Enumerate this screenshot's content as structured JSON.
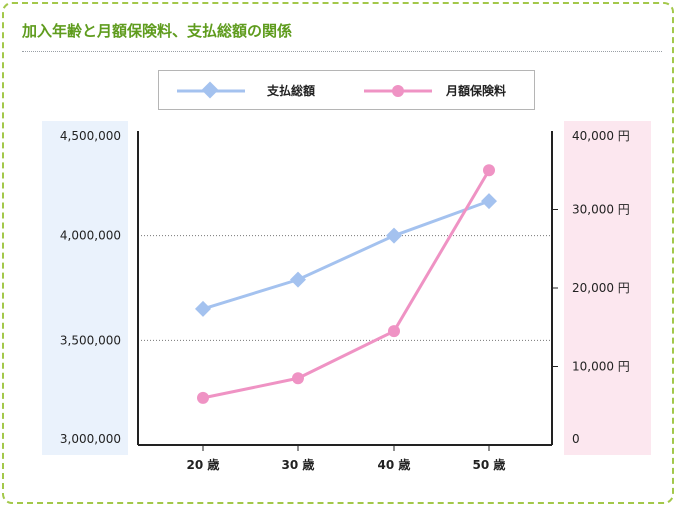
{
  "title": "加入年齢と月額保険料、支払総額の関係",
  "colors": {
    "frame": "#a3c84a",
    "title": "#5f9c1e",
    "series_total": "#a4c2ef",
    "series_premium": "#ef93c4",
    "panel_left": "#eaf2fc",
    "panel_right": "#fce7ef"
  },
  "chart_data": {
    "type": "line",
    "categories": [
      "20 歳",
      "30 歳",
      "40 歳",
      "50 歳"
    ],
    "series": [
      {
        "name": "支払総額",
        "axis": "left",
        "marker": "diamond",
        "color": "#a4c2ef",
        "values": [
          3650000,
          3790000,
          4000000,
          4165000
        ]
      },
      {
        "name": "月額保険料",
        "axis": "right",
        "marker": "circle",
        "color": "#ef93c4",
        "values": [
          6000,
          8500,
          14500,
          35000
        ]
      }
    ],
    "y_left": {
      "lim": [
        3000000,
        4500000
      ],
      "ticks": [
        3000000,
        3500000,
        4000000,
        4500000
      ],
      "tick_labels": [
        "3,000,000",
        "3,500,000",
        "4,000,000",
        "4,500,000"
      ]
    },
    "y_right": {
      "lim": [
        0,
        40000
      ],
      "ticks": [
        0,
        10000,
        20000,
        30000,
        40000
      ],
      "tick_labels": [
        "0",
        "10,000 円",
        "20,000 円",
        "30,000 円",
        "40,000 円"
      ]
    },
    "grid": "horizontal dotted",
    "legend_position": "top"
  }
}
